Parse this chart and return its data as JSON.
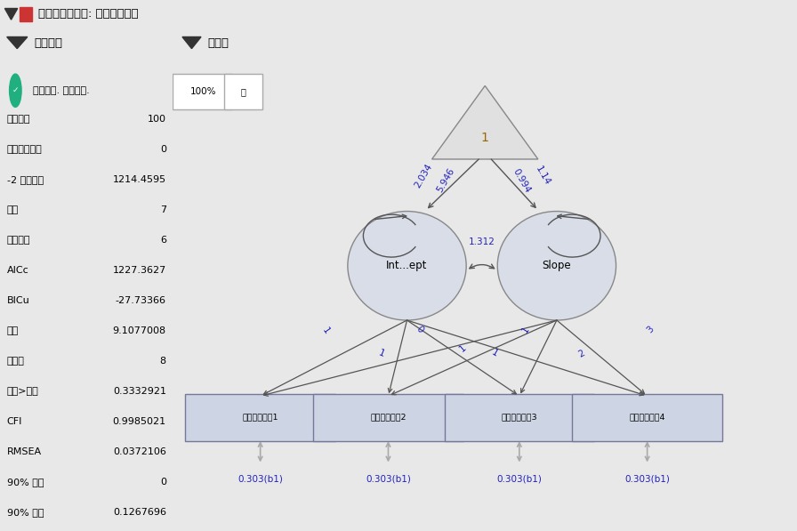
{
  "title": "结构化方程模型: 线性增长模型",
  "left_panel_title": "拟合汇总",
  "right_panel_title": "路径图",
  "fit_label": "最大似然. 梯度收敛.",
  "fit_stats": [
    [
      "样本大小",
      "100"
    ],
    [
      "带缺失值的行",
      "0"
    ],
    [
      "-2 对数似然",
      "1214.4595"
    ],
    [
      "迭代",
      "7"
    ],
    [
      "参数数目",
      "6"
    ],
    [
      "AICc",
      "1227.3627"
    ],
    [
      "BICu",
      "-27.73366"
    ],
    [
      "卡方",
      "9.1077008"
    ],
    [
      "自由度",
      "8"
    ],
    [
      "概率>卡方",
      "0.3332921"
    ],
    [
      "CFI",
      "0.9985021"
    ],
    [
      "RMSEA",
      "0.0372106"
    ],
    [
      "90% 下限",
      "0"
    ],
    [
      "90% 上限",
      "0.1267696"
    ]
  ],
  "bg_color": "#e8e8e8",
  "panel_bg": "#ebebeb",
  "header_bg": "#d4d4d4",
  "diagram_bg": "#f8f8f8",
  "node_intercept_label": "Int...ept",
  "node_slope_label": "Slope",
  "triangle_label": "1",
  "observed_labels": [
    "多项选择年份1",
    "多项选择年份2",
    "多项选择年份3",
    "多项选择年份4"
  ],
  "residual_labels": [
    "0.303(b1)",
    "0.303(b1)",
    "0.303(b1)",
    "0.303(b1)"
  ],
  "path_label_int_outer": "2.034",
  "path_label_int_inner": "5.946",
  "path_label_slp_inner": "0.994",
  "path_label_slp_outer": "1.14",
  "covariance_label": "1.312",
  "label_color_blue": "#2222bb",
  "label_color_orange": "#996600",
  "arrow_color": "#555555",
  "node_fill": "#d8dde8",
  "node_edge": "#888888",
  "obs_fill": "#cdd4e4",
  "obs_edge": "#777799",
  "tri_fill": "#e0e0e0",
  "tri_edge": "#888888",
  "residual_arrow_color": "#aaaaaa",
  "teal_color": "#20b080"
}
